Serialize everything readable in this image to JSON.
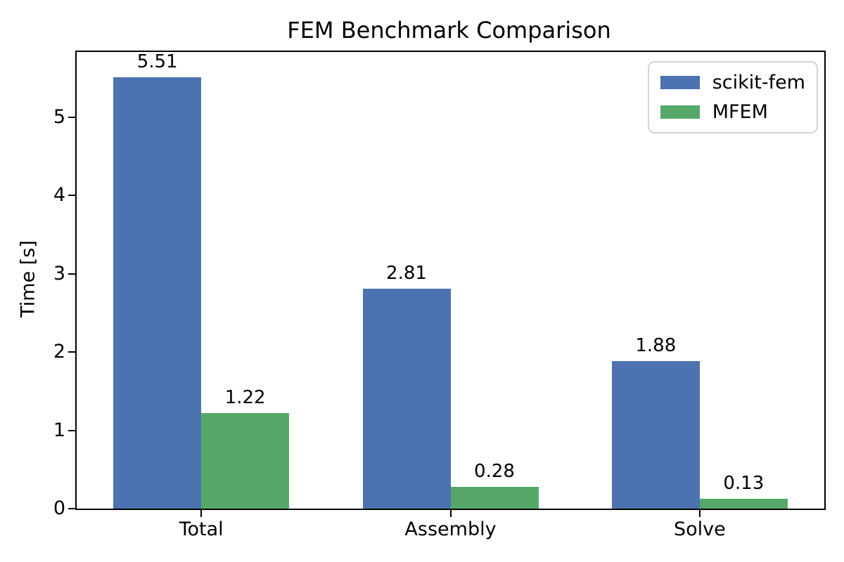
{
  "chart_data": {
    "type": "bar",
    "title": "FEM Benchmark Comparison",
    "xlabel": "",
    "ylabel": "Time [s]",
    "categories": [
      "Total",
      "Assembly",
      "Solve"
    ],
    "series": [
      {
        "name": "scikit-fem",
        "color": "#4C72B0",
        "values": [
          5.51,
          2.81,
          1.88
        ],
        "labels": [
          "5.51",
          "2.81",
          "1.88"
        ]
      },
      {
        "name": "MFEM",
        "color": "#55A868",
        "values": [
          1.22,
          0.28,
          0.13
        ],
        "labels": [
          "1.22",
          "0.28",
          "0.13"
        ]
      }
    ],
    "ylim": [
      0,
      5.83
    ],
    "yticks": [
      0,
      1,
      2,
      3,
      4,
      5
    ],
    "grid": false,
    "legend_position": "upper right",
    "colors": {
      "spine": "#000000",
      "text": "#000000",
      "legend_border": "#d4d4d4",
      "background": "#ffffff"
    }
  }
}
